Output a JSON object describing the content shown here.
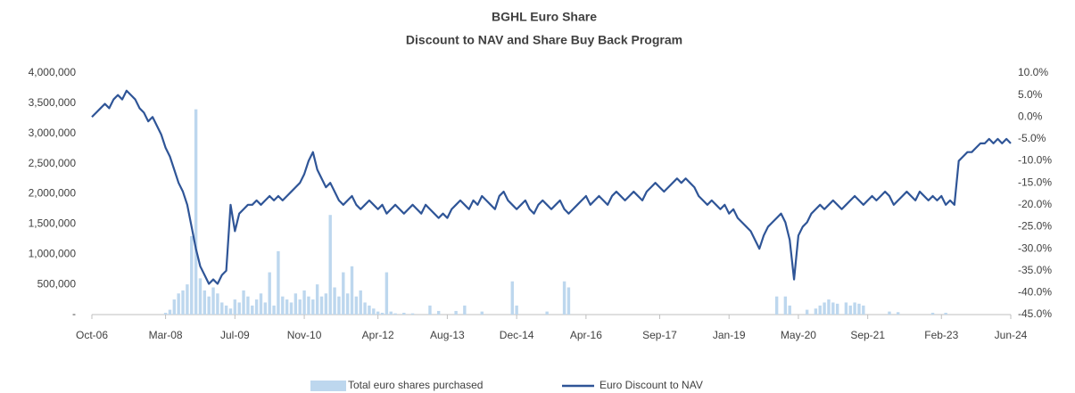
{
  "chart_data": {
    "type": "bar_line",
    "title": "BGHL Euro Share",
    "subtitle": "Discount to NAV and Share Buy Back Program",
    "categories": [
      "Oct-06",
      null,
      null,
      null,
      null,
      null,
      null,
      null,
      null,
      null,
      null,
      null,
      null,
      null,
      null,
      null,
      null,
      "Mar-08",
      null,
      null,
      null,
      null,
      null,
      null,
      null,
      null,
      null,
      null,
      null,
      null,
      null,
      null,
      null,
      "Jul-09",
      null,
      null,
      null,
      null,
      null,
      null,
      null,
      null,
      null,
      null,
      null,
      null,
      null,
      null,
      null,
      "Nov-10",
      null,
      null,
      null,
      null,
      null,
      null,
      null,
      null,
      null,
      null,
      null,
      null,
      null,
      null,
      null,
      null,
      "Apr-12",
      null,
      null,
      null,
      null,
      null,
      null,
      null,
      null,
      null,
      null,
      null,
      null,
      null,
      null,
      null,
      "Aug-13",
      null,
      null,
      null,
      null,
      null,
      null,
      null,
      null,
      null,
      null,
      null,
      null,
      null,
      null,
      null,
      "Dec-14",
      null,
      null,
      null,
      null,
      null,
      null,
      null,
      null,
      null,
      null,
      null,
      null,
      null,
      null,
      null,
      "Apr-16",
      null,
      null,
      null,
      null,
      null,
      null,
      null,
      null,
      null,
      null,
      null,
      null,
      null,
      null,
      null,
      null,
      "Sep-17",
      null,
      null,
      null,
      null,
      null,
      null,
      null,
      null,
      null,
      null,
      null,
      null,
      null,
      null,
      null,
      "Jan-19",
      null,
      null,
      null,
      null,
      null,
      null,
      null,
      null,
      null,
      null,
      null,
      null,
      null,
      null,
      null,
      "May-20",
      null,
      null,
      null,
      null,
      null,
      null,
      null,
      null,
      null,
      null,
      null,
      null,
      null,
      null,
      null,
      "Sep-21",
      null,
      null,
      null,
      null,
      null,
      null,
      null,
      null,
      null,
      null,
      null,
      null,
      null,
      null,
      null,
      null,
      "Feb-23",
      null,
      null,
      null,
      null,
      null,
      null,
      null,
      null,
      null,
      null,
      null,
      null,
      null,
      null,
      null,
      "Jun-24"
    ],
    "series": [
      {
        "name": "Total euro shares purchased",
        "type": "bar",
        "color": "#bdd7ee",
        "values": [
          0,
          0,
          0,
          0,
          0,
          0,
          0,
          0,
          0,
          0,
          0,
          0,
          0,
          0,
          0,
          0,
          0,
          30000,
          80000,
          250000,
          350000,
          400000,
          500000,
          1300000,
          3400000,
          600000,
          400000,
          300000,
          450000,
          350000,
          200000,
          150000,
          100000,
          250000,
          200000,
          400000,
          300000,
          150000,
          250000,
          350000,
          200000,
          700000,
          150000,
          1050000,
          300000,
          250000,
          200000,
          350000,
          250000,
          400000,
          300000,
          250000,
          500000,
          300000,
          350000,
          1650000,
          450000,
          300000,
          700000,
          350000,
          800000,
          300000,
          400000,
          200000,
          150000,
          100000,
          50000,
          30000,
          700000,
          50000,
          20000,
          0,
          30000,
          0,
          20000,
          0,
          0,
          0,
          150000,
          0,
          60000,
          0,
          0,
          0,
          60000,
          0,
          150000,
          0,
          0,
          0,
          50000,
          0,
          0,
          0,
          0,
          0,
          0,
          550000,
          150000,
          0,
          0,
          0,
          0,
          0,
          0,
          50000,
          0,
          0,
          0,
          550000,
          450000,
          0,
          0,
          0,
          0,
          0,
          0,
          0,
          0,
          0,
          0,
          0,
          0,
          0,
          0,
          0,
          0,
          0,
          0,
          0,
          0,
          0,
          0,
          0,
          0,
          0,
          0,
          0,
          0,
          0,
          0,
          0,
          0,
          0,
          0,
          0,
          0,
          0,
          0,
          0,
          0,
          0,
          0,
          0,
          0,
          0,
          0,
          0,
          300000,
          0,
          300000,
          150000,
          0,
          0,
          0,
          80000,
          0,
          100000,
          150000,
          200000,
          250000,
          200000,
          180000,
          0,
          200000,
          150000,
          200000,
          180000,
          150000,
          0,
          0,
          0,
          0,
          0,
          50000,
          0,
          40000,
          0,
          0,
          0,
          0,
          0,
          0,
          0,
          30000,
          0,
          0,
          30000,
          0,
          0,
          0,
          0,
          0,
          0,
          0,
          0,
          0,
          0,
          0,
          0,
          0,
          0,
          0
        ]
      },
      {
        "name": "Euro Discount to NAV",
        "type": "line",
        "axis": "y2",
        "color": "#2f5597",
        "values": [
          0,
          1,
          2,
          3,
          2,
          4,
          5,
          4,
          6,
          5,
          4,
          2,
          1,
          -1,
          0,
          -2,
          -4,
          -7,
          -9,
          -12,
          -15,
          -17,
          -20,
          -25,
          -30,
          -34,
          -36,
          -38,
          -37,
          -38,
          -36,
          -35,
          -20,
          -26,
          -22,
          -21,
          -20,
          -20,
          -19,
          -20,
          -19,
          -18,
          -19,
          -18,
          -19,
          -18,
          -17,
          -16,
          -15,
          -13,
          -10,
          -8,
          -12,
          -14,
          -16,
          -15,
          -17,
          -19,
          -20,
          -19,
          -18,
          -20,
          -21,
          -20,
          -19,
          -20,
          -21,
          -20,
          -22,
          -21,
          -20,
          -21,
          -22,
          -21,
          -20,
          -21,
          -22,
          -20,
          -21,
          -22,
          -23,
          -22,
          -23,
          -21,
          -20,
          -19,
          -20,
          -21,
          -19,
          -20,
          -18,
          -19,
          -20,
          -21,
          -18,
          -17,
          -19,
          -20,
          -21,
          -20,
          -19,
          -21,
          -22,
          -20,
          -19,
          -20,
          -21,
          -20,
          -19,
          -21,
          -22,
          -21,
          -20,
          -19,
          -18,
          -20,
          -19,
          -18,
          -19,
          -20,
          -18,
          -17,
          -18,
          -19,
          -18,
          -17,
          -18,
          -19,
          -17,
          -16,
          -15,
          -16,
          -17,
          -16,
          -15,
          -14,
          -15,
          -14,
          -15,
          -16,
          -18,
          -19,
          -20,
          -19,
          -20,
          -21,
          -20,
          -22,
          -21,
          -23,
          -24,
          -25,
          -26,
          -28,
          -30,
          -27,
          -25,
          -24,
          -23,
          -22,
          -24,
          -28,
          -37,
          -27,
          -25,
          -24,
          -22,
          -21,
          -20,
          -21,
          -20,
          -19,
          -20,
          -21,
          -20,
          -19,
          -18,
          -19,
          -20,
          -19,
          -18,
          -19,
          -18,
          -17,
          -18,
          -20,
          -19,
          -18,
          -17,
          -18,
          -19,
          -17,
          -18,
          -19,
          -18,
          -19,
          -18,
          -20,
          -19,
          -20,
          -10,
          -9,
          -8,
          -8,
          -7,
          -6,
          -6,
          -5,
          -6,
          -5,
          -6,
          -5,
          -6
        ]
      }
    ],
    "ylim": [
      0,
      4000000
    ],
    "yticks": [
      {
        "value": 0,
        "label": "-"
      },
      {
        "value": 500000,
        "label": "500,000"
      },
      {
        "value": 1000000,
        "label": "1,000,000"
      },
      {
        "value": 1500000,
        "label": "1,500,000"
      },
      {
        "value": 2000000,
        "label": "2,000,000"
      },
      {
        "value": 2500000,
        "label": "2,500,000"
      },
      {
        "value": 3000000,
        "label": "3,000,000"
      },
      {
        "value": 3500000,
        "label": "3,500,000"
      },
      {
        "value": 4000000,
        "label": "4,000,000"
      }
    ],
    "y2lim": [
      -45,
      10
    ],
    "y2ticks": [
      {
        "value": -45,
        "label": "-45.0%"
      },
      {
        "value": -40,
        "label": "-40.0%"
      },
      {
        "value": -35,
        "label": "-35.0%"
      },
      {
        "value": -30,
        "label": "-30.0%"
      },
      {
        "value": -25,
        "label": "-25.0%"
      },
      {
        "value": -20,
        "label": "-20.0%"
      },
      {
        "value": -15,
        "label": "-15.0%"
      },
      {
        "value": -10,
        "label": "-10.0%"
      },
      {
        "value": -5,
        "label": "-5.0%"
      },
      {
        "value": 0,
        "label": "0.0%"
      },
      {
        "value": 5,
        "label": "5.0%"
      },
      {
        "value": 10,
        "label": "10.0%"
      }
    ],
    "grid": false,
    "legend": "bottom"
  }
}
